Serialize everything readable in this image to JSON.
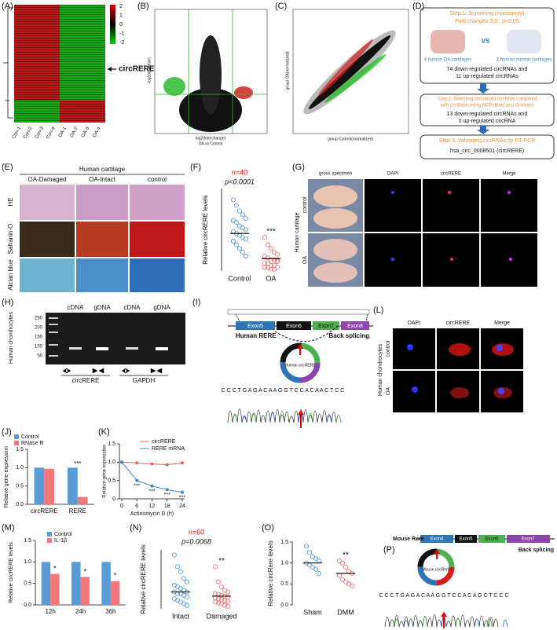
{
  "panels": {
    "A": {
      "label": "(A)",
      "samples": [
        "Con-1",
        "Con-2",
        "Con-3",
        "Con-4",
        "OA-1",
        "OA-2",
        "OA-3",
        "OA-4"
      ],
      "colorbar": [
        2,
        1,
        0,
        -1,
        -2
      ],
      "annotation": "circRERE"
    },
    "B": {
      "label": "(B)",
      "y_label": "-log10(p-value)",
      "x_label": "log2(fold change)",
      "x_sublabel": "OA vs Control"
    },
    "C": {
      "label": "(C)",
      "y_label": "group OA(normalized)",
      "x_label": "group Control(normalized)"
    },
    "D": {
      "label": "(D)",
      "step1": "Step 1: Screening (microarray)",
      "criteria": "Fold change≥ 3.0 , p<0.05",
      "vs": "vs",
      "oa_samples": "4 human OA cartilages",
      "normal_samples": "4 human normal cartilages",
      "result1": [
        "74 down-regulated circRNAs and",
        "11 up-regulated circRNAs"
      ],
      "step2": [
        "Step 2: Selecting conserved circRNA compared",
        "with circBase using NCBI blast and Circbank"
      ],
      "result2": [
        "13 down-regulated circRNAs and",
        "0 up-regulated circRNA"
      ],
      "step3": "Step 3: Validating circRNAs by RT-PCR",
      "result3": "hsa_circ_0008501 (circRERE)"
    },
    "E": {
      "label": "(E)",
      "title": "Human cartilage",
      "columns": [
        "OA-Damaged",
        "OA-Intact",
        "control"
      ],
      "rows": [
        "HE",
        "Safranin-O",
        "Alcian blue"
      ]
    },
    "F": {
      "label": "(F)",
      "n": "n=40",
      "p": "p<0.0001",
      "y_label": "Relative circRERE levels",
      "categories": [
        "Control",
        "OA"
      ],
      "sig": "***",
      "ylim": [
        0,
        2.2
      ],
      "mean": [
        1.0,
        0.33
      ],
      "points": [
        [
          1.9,
          1.75,
          1.6,
          1.5,
          1.4,
          1.35,
          1.3,
          1.2,
          1.15,
          1.1,
          1.05,
          1.0,
          0.95,
          0.9,
          0.85,
          0.8,
          0.7,
          0.6,
          0.5,
          0.4
        ],
        [
          0.9,
          0.7,
          0.6,
          0.5,
          0.45,
          0.4,
          0.35,
          0.3,
          0.3,
          0.25,
          0.2,
          0.2,
          0.15,
          0.15,
          0.1,
          0.1,
          0.08,
          0.05,
          0.05,
          0.3
        ]
      ]
    },
    "G": {
      "label": "(G)",
      "columns": [
        "gross specimen",
        "DAPI",
        "circRERE",
        "Merge"
      ],
      "rows": [
        "control",
        "OA"
      ],
      "side": "Human cartilage"
    },
    "H": {
      "label": "(H)",
      "side": "Human chondrocytes",
      "lanes": [
        "cDNA",
        "gDNA",
        "cDNA",
        "gDNA"
      ],
      "ladder": [
        250,
        200,
        150,
        100,
        50
      ],
      "groups": [
        "circRERE",
        "GAPDH"
      ]
    },
    "I": {
      "label": "(I)",
      "exons": [
        "Exon5",
        "Exon6",
        "Exon7",
        "Exon8"
      ],
      "gene": "Human RERE",
      "splicing": "Back splicing",
      "circ": "Human circRERE",
      "sequence": "C C C T G A G A C A A G G T C C A C A A C T C C"
    },
    "J": {
      "label": "(J)",
      "legend": [
        "Control",
        "RNase R"
      ],
      "categories": [
        "circRERE",
        "RERE"
      ],
      "series": [
        [
          1.0,
          1.0
        ],
        [
          0.97,
          0.2
        ]
      ],
      "colors": [
        "#5b9bd5",
        "#f4777a"
      ],
      "ylim": [
        0,
        1.5
      ],
      "yticks": [
        {
          "value": 0,
          "label": "0.0"
        },
        0.5,
        {
          "value": 1,
          "label": "1.0"
        },
        1.5
      ],
      "y_label": "Relative gene expression",
      "sig": "***"
    },
    "K": {
      "label": "(K)",
      "series": [
        {
          "name": "circRERE",
          "color": "#e06666",
          "values": [
            1.0,
            0.98,
            0.95,
            0.93,
            0.98
          ]
        },
        {
          "name": "RERE mRNA",
          "color": "#3d85c6",
          "values": [
            1.0,
            0.5,
            0.35,
            0.25,
            0.18
          ]
        }
      ],
      "x": [
        0,
        6,
        12,
        18,
        24
      ],
      "xlim": [
        0,
        24
      ],
      "ylim": [
        0,
        1.5
      ],
      "xticks": [
        0,
        6,
        12,
        18,
        24
      ],
      "yticks": [
        0,
        0.5,
        {
          "value": 1,
          "label": "1.0"
        },
        1.5
      ],
      "x_label": "Actinomycin D (h)",
      "y_label": "Relative gene expression",
      "sig": [
        "***",
        "***",
        "***",
        "***"
      ]
    },
    "L": {
      "label": "(L)",
      "columns": [
        "DAPI",
        "circRERE",
        "Merge"
      ],
      "rows": [
        "control",
        "OA"
      ],
      "side": "Human chondrocytes"
    },
    "M": {
      "label": "(M)",
      "legend": [
        "Control",
        "IL-1β"
      ],
      "categories": [
        "12h",
        "24h",
        "36h"
      ],
      "series": [
        [
          1.0,
          1.0,
          1.0
        ],
        [
          0.72,
          0.65,
          0.55
        ]
      ],
      "colors": [
        "#5b9bd5",
        "#f4777a"
      ],
      "ylim": [
        0,
        1.5
      ],
      "yticks": [
        {
          "value": 0,
          "label": "0.0"
        },
        0.5,
        {
          "value": 1,
          "label": "1.0"
        },
        1.5
      ],
      "y_label": "Relative circRERE levels",
      "sig": [
        "*",
        "*",
        "*"
      ]
    },
    "N": {
      "label": "(N)",
      "n": "n=60",
      "p": "p=0.0068",
      "y_label": "Relative circRERE levels",
      "categories": [
        "Intact",
        "Damaged"
      ],
      "sig": "**",
      "ylim": [
        0,
        3.5
      ],
      "mean": [
        1.0,
        0.75
      ],
      "points": [
        [
          3.2,
          2.5,
          2.2,
          1.8,
          1.6,
          1.4,
          1.3,
          1.2,
          1.1,
          1.0,
          1.0,
          0.9,
          0.9,
          0.8,
          0.7,
          0.6,
          0.5,
          0.4,
          0.3,
          0.2
        ],
        [
          2.5,
          1.6,
          1.3,
          1.1,
          1.0,
          0.9,
          0.85,
          0.8,
          0.75,
          0.7,
          0.65,
          0.6,
          0.55,
          0.5,
          0.45,
          0.4,
          0.35,
          0.3,
          0.2,
          0.15
        ]
      ]
    },
    "O": {
      "label": "(O)",
      "y_label": "Relative circRere levels",
      "categories": [
        "Sham",
        "DMM"
      ],
      "sig": "**",
      "ylim": [
        0,
        1.5
      ],
      "yticks": [
        {
          "value": 0,
          "label": "0.0"
        },
        0.5,
        {
          "value": 1,
          "label": "1.0"
        },
        1.5
      ],
      "mean": [
        1.0,
        0.75
      ],
      "points": [
        [
          1.4,
          1.25,
          1.15,
          1.1,
          1.05,
          1.0,
          0.95,
          0.9,
          0.85,
          0.75
        ],
        [
          1.05,
          1.0,
          0.9,
          0.8,
          0.75,
          0.7,
          0.6,
          0.55,
          0.5,
          0.45
        ]
      ]
    },
    "P": {
      "label": "(P)",
      "gene": "Mouse Rere",
      "exons": [
        "Exon4",
        "Exon5",
        "Exon6",
        "Exon7"
      ],
      "splicing": "Back splicing",
      "circ": "Mouse circRere",
      "sequence": "C C C T G A G A C A A G G T C C A C A G C T C C C"
    }
  }
}
